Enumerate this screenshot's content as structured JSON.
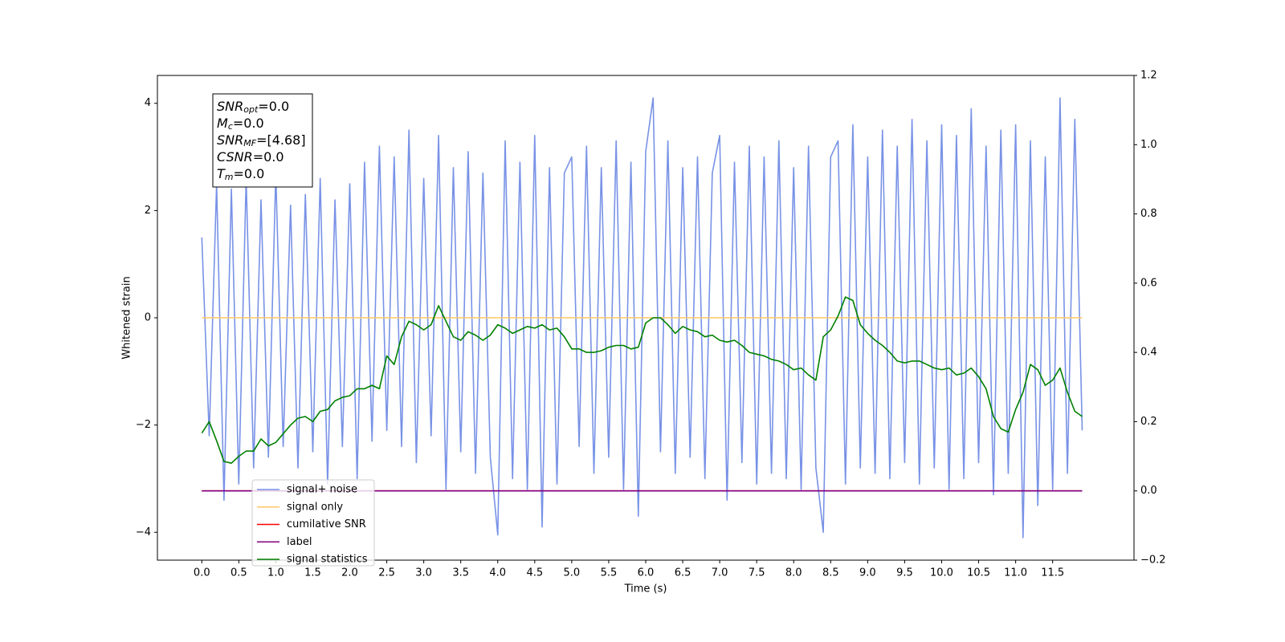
{
  "chart_data": {
    "type": "line",
    "ylabel": "Whitened strain",
    "xlabel": "Time (s)",
    "annotation": [
      {
        "symbol": "SNR",
        "subscript": "opt",
        "text": "=0.0"
      },
      {
        "symbol": "M",
        "subscript": "c",
        "text": "=0.0"
      },
      {
        "symbol": "SNR",
        "subscript": "MF",
        "text": "=[4.68]"
      },
      {
        "symbol": "CSNR",
        "subscript": "",
        "text": "=0.0"
      },
      {
        "symbol": "T",
        "subscript": "m",
        "text": "=0.0"
      }
    ],
    "legend": "lower left",
    "xlim": [
      -0.6,
      12.6
    ],
    "ylim": [
      -4.52,
      4.52
    ],
    "y2lim": [
      -0.2,
      1.2
    ],
    "xticks": [
      {
        "value": 0,
        "label": "0.0"
      },
      0.5,
      {
        "value": 1,
        "label": "1.0"
      },
      1.5,
      {
        "value": 2,
        "label": "2.0"
      },
      2.5,
      {
        "value": 3,
        "label": "3.0"
      },
      3.5,
      {
        "value": 4,
        "label": "4.0"
      },
      4.5,
      {
        "value": 5,
        "label": "5.0"
      },
      5.5,
      {
        "value": 6,
        "label": "6.0"
      },
      6.5,
      {
        "value": 7,
        "label": "7.0"
      },
      7.5,
      {
        "value": 8,
        "label": "8.0"
      },
      8.5,
      {
        "value": 9,
        "label": "9.0"
      },
      9.5,
      {
        "value": 10,
        "label": "10.0"
      },
      10.5,
      {
        "value": 11,
        "label": "11.0"
      },
      11.5
    ],
    "yticks": [
      {
        "value": -4,
        "label": "−4"
      },
      {
        "value": -2,
        "label": "−2"
      },
      0,
      2,
      4
    ],
    "y2ticks": [
      {
        "value": -0.2,
        "label": "−0.2"
      },
      {
        "value": 0,
        "label": "0.0"
      },
      0.2,
      0.4,
      0.6,
      0.8,
      {
        "value": 1,
        "label": "1.0"
      },
      1.2
    ],
    "x": [
      0,
      0.1,
      0.2,
      0.3,
      0.4,
      0.5,
      0.6,
      0.7,
      0.8,
      0.9,
      1,
      1.1,
      1.2,
      1.3,
      1.4,
      1.5,
      1.6,
      1.7,
      1.8,
      1.9,
      2,
      2.1,
      2.2,
      2.3,
      2.4,
      2.5,
      2.6,
      2.7,
      2.8,
      2.9,
      3,
      3.1,
      3.2,
      3.3,
      3.4,
      3.5,
      3.6,
      3.7,
      3.8,
      3.9,
      4,
      4.1,
      4.2,
      4.3,
      4.4,
      4.5,
      4.6,
      4.7,
      4.8,
      4.9,
      5,
      5.1,
      5.2,
      5.3,
      5.4,
      5.5,
      5.6,
      5.7,
      5.8,
      5.9,
      6,
      6.1,
      6.2,
      6.3,
      6.4,
      6.5,
      6.6,
      6.7,
      6.8,
      6.9,
      7,
      7.1,
      7.2,
      7.3,
      7.4,
      7.5,
      7.6,
      7.7,
      7.8,
      7.9,
      8,
      8.1,
      8.2,
      8.3,
      8.4,
      8.5,
      8.6,
      8.7,
      8.8,
      8.9,
      9,
      9.1,
      9.2,
      9.3,
      9.4,
      9.5,
      9.6,
      9.7,
      9.8,
      9.9,
      10,
      10.1,
      10.2,
      10.3,
      10.4,
      10.5,
      10.6,
      10.7,
      10.8,
      10.9,
      11,
      11.1,
      11.2,
      11.3,
      11.4,
      11.5,
      11.6,
      11.7,
      11.8,
      11.9
    ],
    "series": [
      {
        "name": "signal+ noise",
        "color": "#7892e6",
        "values": [
          1.5,
          -2.2,
          2.5,
          -3.4,
          2.4,
          -3.1,
          2.6,
          -2.8,
          2.2,
          -2.6,
          2.7,
          -2.4,
          2.1,
          -2.8,
          2.3,
          -2.5,
          2.6,
          -3.1,
          2.2,
          -2.4,
          2.5,
          -3.0,
          2.9,
          -2.3,
          3.2,
          -2.1,
          3.0,
          -2.4,
          3.5,
          -2.7,
          2.6,
          -2.2,
          3.4,
          -3.2,
          2.8,
          -2.5,
          3.1,
          -2.9,
          2.7,
          -2.6,
          -4.05,
          3.3,
          -3.0,
          2.9,
          -3.2,
          3.4,
          -3.9,
          2.8,
          -3.1,
          2.7,
          3.0,
          -2.4,
          3.2,
          -2.9,
          2.8,
          -2.6,
          3.3,
          -3.2,
          2.9,
          -3.7,
          3.1,
          4.1,
          -2.5,
          3.3,
          -2.9,
          2.8,
          -2.6,
          3.0,
          -3.0,
          2.7,
          3.4,
          -3.4,
          2.9,
          -2.7,
          3.2,
          -3.1,
          3.0,
          -2.9,
          3.3,
          -3.0,
          2.8,
          -3.2,
          3.2,
          -2.8,
          -4.0,
          3.0,
          3.3,
          -3.1,
          3.6,
          -2.8,
          3.0,
          -2.9,
          3.5,
          -3.0,
          3.2,
          -2.7,
          3.7,
          -3.1,
          3.3,
          -2.8,
          3.6,
          -3.2,
          3.4,
          -3.0,
          3.9,
          -2.7,
          3.2,
          -3.3,
          3.5,
          -2.9,
          3.6,
          -4.1,
          3.3,
          -3.5,
          3.0,
          -3.2,
          4.1,
          -2.9,
          3.7,
          -2.1
        ]
      },
      {
        "name": "signal only",
        "color": "#ffc766",
        "values": [
          0,
          0,
          0,
          0,
          0,
          0,
          0,
          0,
          0,
          0,
          0,
          0,
          0,
          0,
          0,
          0,
          0,
          0,
          0,
          0,
          0,
          0,
          0,
          0,
          0,
          0,
          0,
          0,
          0,
          0,
          0,
          0,
          0,
          0,
          0,
          0,
          0,
          0,
          0,
          0,
          0,
          0,
          0,
          0,
          0,
          0,
          0,
          0,
          0,
          0,
          0,
          0,
          0,
          0,
          0,
          0,
          0,
          0,
          0,
          0,
          0,
          0,
          0,
          0,
          0,
          0,
          0,
          0,
          0,
          0,
          0,
          0,
          0,
          0,
          0,
          0,
          0,
          0,
          0,
          0,
          0,
          0,
          0,
          0,
          0,
          0,
          0,
          0,
          0,
          0,
          0,
          0,
          0,
          0,
          0,
          0,
          0,
          0,
          0,
          0,
          0,
          0,
          0,
          0,
          0,
          0,
          0,
          0,
          0,
          0,
          0,
          0,
          0,
          0,
          0,
          0,
          0,
          0,
          0,
          0
        ]
      },
      {
        "name": "cumilative SNR",
        "color": "#ff0000",
        "axis": "y2",
        "values": [
          0,
          0,
          0,
          0,
          0,
          0,
          0,
          0,
          0,
          0,
          0,
          0,
          0,
          0,
          0,
          0,
          0,
          0,
          0,
          0,
          0,
          0,
          0,
          0,
          0,
          0,
          0,
          0,
          0,
          0,
          0,
          0,
          0,
          0,
          0,
          0,
          0,
          0,
          0,
          0,
          0,
          0,
          0,
          0,
          0,
          0,
          0,
          0,
          0,
          0,
          0,
          0,
          0,
          0,
          0,
          0,
          0,
          0,
          0,
          0,
          0,
          0,
          0,
          0,
          0,
          0,
          0,
          0,
          0,
          0,
          0,
          0,
          0,
          0,
          0,
          0,
          0,
          0,
          0,
          0,
          0,
          0,
          0,
          0,
          0,
          0,
          0,
          0,
          0,
          0,
          0,
          0,
          0,
          0,
          0,
          0,
          0,
          0,
          0,
          0,
          0,
          0,
          0,
          0,
          0,
          0,
          0,
          0,
          0,
          0,
          0,
          0,
          0,
          0,
          0,
          0,
          0,
          0,
          0,
          0
        ]
      },
      {
        "name": "label",
        "color": "#800080",
        "axis": "y2",
        "values": [
          0,
          0,
          0,
          0,
          0,
          0,
          0,
          0,
          0,
          0,
          0,
          0,
          0,
          0,
          0,
          0,
          0,
          0,
          0,
          0,
          0,
          0,
          0,
          0,
          0,
          0,
          0,
          0,
          0,
          0,
          0,
          0,
          0,
          0,
          0,
          0,
          0,
          0,
          0,
          0,
          0,
          0,
          0,
          0,
          0,
          0,
          0,
          0,
          0,
          0,
          0,
          0,
          0,
          0,
          0,
          0,
          0,
          0,
          0,
          0,
          0,
          0,
          0,
          0,
          0,
          0,
          0,
          0,
          0,
          0,
          0,
          0,
          0,
          0,
          0,
          0,
          0,
          0,
          0,
          0,
          0,
          0,
          0,
          0,
          0,
          0,
          0,
          0,
          0,
          0,
          0,
          0,
          0,
          0,
          0,
          0,
          0,
          0,
          0,
          0,
          0,
          0,
          0,
          0,
          0,
          0,
          0,
          0,
          0,
          0,
          0,
          0,
          0,
          0,
          0,
          0,
          0,
          0,
          0,
          0
        ]
      },
      {
        "name": "signal statistics",
        "color": "#008000",
        "axis": "y2",
        "values": [
          0.167,
          0.2,
          0.145,
          0.085,
          0.08,
          0.1,
          0.115,
          0.115,
          0.15,
          0.13,
          0.14,
          0.165,
          0.19,
          0.21,
          0.215,
          0.2,
          0.23,
          0.235,
          0.26,
          0.27,
          0.275,
          0.295,
          0.295,
          0.305,
          0.295,
          0.39,
          0.365,
          0.445,
          0.49,
          0.48,
          0.465,
          0.48,
          0.535,
          0.49,
          0.445,
          0.435,
          0.46,
          0.45,
          0.435,
          0.45,
          0.48,
          0.47,
          0.455,
          0.465,
          0.475,
          0.47,
          0.48,
          0.465,
          0.47,
          0.445,
          0.41,
          0.41,
          0.4,
          0.4,
          0.405,
          0.415,
          0.42,
          0.42,
          0.41,
          0.415,
          0.485,
          0.5,
          0.5,
          0.48,
          0.455,
          0.475,
          0.465,
          0.46,
          0.445,
          0.45,
          0.435,
          0.43,
          0.435,
          0.42,
          0.4,
          0.395,
          0.39,
          0.38,
          0.375,
          0.365,
          0.35,
          0.355,
          0.335,
          0.32,
          0.445,
          0.465,
          0.505,
          0.56,
          0.55,
          0.48,
          0.455,
          0.435,
          0.42,
          0.4,
          0.375,
          0.37,
          0.375,
          0.375,
          0.365,
          0.355,
          0.35,
          0.355,
          0.335,
          0.34,
          0.355,
          0.33,
          0.295,
          0.215,
          0.18,
          0.17,
          0.235,
          0.285,
          0.365,
          0.35,
          0.305,
          0.32,
          0.355,
          0.285,
          0.23,
          0.215
        ]
      }
    ]
  }
}
